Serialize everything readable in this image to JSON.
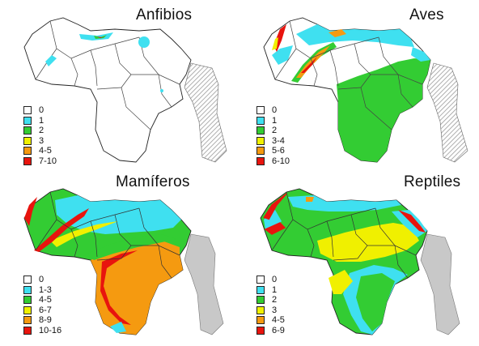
{
  "colors": {
    "border": "#222222",
    "neighbor_gray": "#c8c8c8",
    "hatch": "#9a9a9a"
  },
  "panels": [
    {
      "title": "Anfibios",
      "legend": [
        {
          "label": "0",
          "color": "#ffffff"
        },
        {
          "label": "1",
          "color": "#3fe0f0"
        },
        {
          "label": "2",
          "color": "#33cc33"
        },
        {
          "label": "3",
          "color": "#f0f000"
        },
        {
          "label": "4-5",
          "color": "#f59a10"
        },
        {
          "label": "7-10",
          "color": "#e8140e"
        }
      ]
    },
    {
      "title": "Aves",
      "legend": [
        {
          "label": "0",
          "color": "#ffffff"
        },
        {
          "label": "1",
          "color": "#3fe0f0"
        },
        {
          "label": "2",
          "color": "#33cc33"
        },
        {
          "label": "3-4",
          "color": "#f0f000"
        },
        {
          "label": "5-6",
          "color": "#f59a10"
        },
        {
          "label": "6-10",
          "color": "#e8140e"
        }
      ]
    },
    {
      "title": "Mamíferos",
      "legend": [
        {
          "label": "0",
          "color": "#ffffff"
        },
        {
          "label": "1-3",
          "color": "#3fe0f0"
        },
        {
          "label": "4-5",
          "color": "#33cc33"
        },
        {
          "label": "6-7",
          "color": "#f0f000"
        },
        {
          "label": "8-9",
          "color": "#f59a10"
        },
        {
          "label": "10-16",
          "color": "#e8140e"
        }
      ]
    },
    {
      "title": "Reptiles",
      "legend": [
        {
          "label": "0",
          "color": "#ffffff"
        },
        {
          "label": "1",
          "color": "#3fe0f0"
        },
        {
          "label": "2",
          "color": "#33cc33"
        },
        {
          "label": "3",
          "color": "#f0f000"
        },
        {
          "label": "4-5",
          "color": "#f59a10"
        },
        {
          "label": "6-9",
          "color": "#e8140e"
        }
      ]
    }
  ]
}
